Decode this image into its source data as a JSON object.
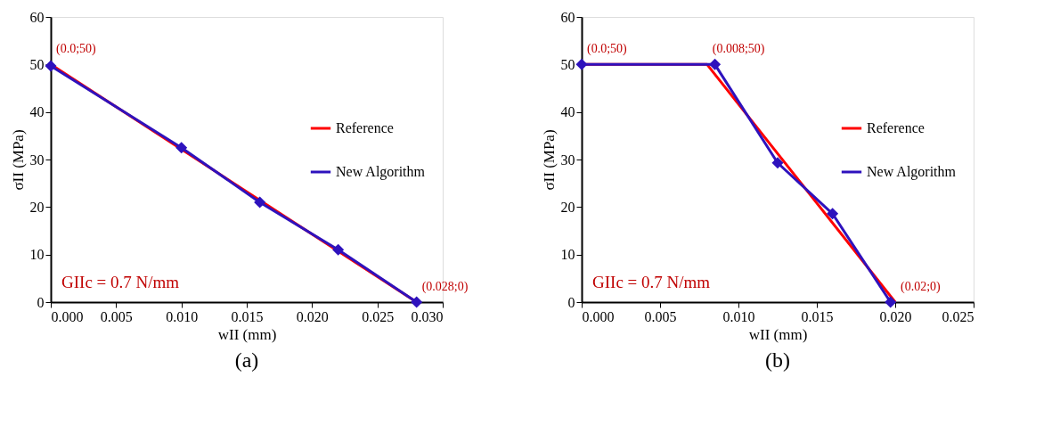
{
  "chart_data": [
    {
      "type": "line",
      "title": "(a)",
      "xlabel": "wII (mm)",
      "ylabel": "σII (MPa)",
      "xlim": [
        0,
        0.03
      ],
      "xticks": [
        {
          "value": 0,
          "label": "0.000"
        },
        0.005,
        {
          "value": 0.01,
          "label": "0.010"
        },
        0.015,
        {
          "value": 0.02,
          "label": "0.020"
        },
        0.025,
        {
          "value": 0.03,
          "label": "0.030"
        }
      ],
      "ylim": [
        0,
        60
      ],
      "yticks": [
        0,
        10,
        20,
        30,
        40,
        50,
        60
      ],
      "grid": false,
      "legend": "right",
      "series": [
        {
          "name": "Reference",
          "color": "#ff0000",
          "marker": "none",
          "x": [
            0,
            0.028
          ],
          "values": [
            50,
            0
          ]
        },
        {
          "name": "New Algorithm",
          "color": "#2e12bd",
          "marker": "diamond",
          "x": [
            0,
            0.01,
            0.016,
            0.022,
            0.028
          ],
          "values": [
            49.7,
            32.5,
            21,
            11,
            0
          ]
        }
      ],
      "annotations": [
        {
          "text": "(0.0;50)",
          "x": 0,
          "y": 50
        },
        {
          "text": "(0.028;0)",
          "x": 0.028,
          "y": 0
        },
        "GIIc = 0.7 N/mm"
      ]
    },
    {
      "type": "line",
      "title": "(b)",
      "xlabel": "wII (mm)",
      "ylabel": "σII (MPa)",
      "xlim": [
        0,
        0.025
      ],
      "xticks": [
        {
          "value": 0,
          "label": "0.000"
        },
        0.005,
        {
          "value": 0.01,
          "label": "0.010"
        },
        0.015,
        {
          "value": 0.02,
          "label": "0.020"
        },
        0.025
      ],
      "ylim": [
        0,
        60
      ],
      "yticks": [
        0,
        10,
        20,
        30,
        40,
        50,
        60
      ],
      "grid": false,
      "legend": "right",
      "series": [
        {
          "name": "Reference",
          "color": "#ff0000",
          "marker": "none",
          "x": [
            0,
            0.008,
            0.02
          ],
          "values": [
            50,
            50,
            0
          ]
        },
        {
          "name": "New Algorithm",
          "color": "#2e12bd",
          "marker": "diamond",
          "x": [
            0,
            0.0085,
            0.0125,
            0.016,
            0.0197
          ],
          "values": [
            50,
            50,
            29.3,
            18.6,
            0
          ]
        }
      ],
      "annotations": [
        {
          "text": "(0.0;50)",
          "x": 0,
          "y": 50
        },
        {
          "text": "(0.008;50)",
          "x": 0.008,
          "y": 50
        },
        {
          "text": "(0.02;0)",
          "x": 0.02,
          "y": 0
        },
        "GIIc = 0.7 N/mm"
      ]
    }
  ]
}
